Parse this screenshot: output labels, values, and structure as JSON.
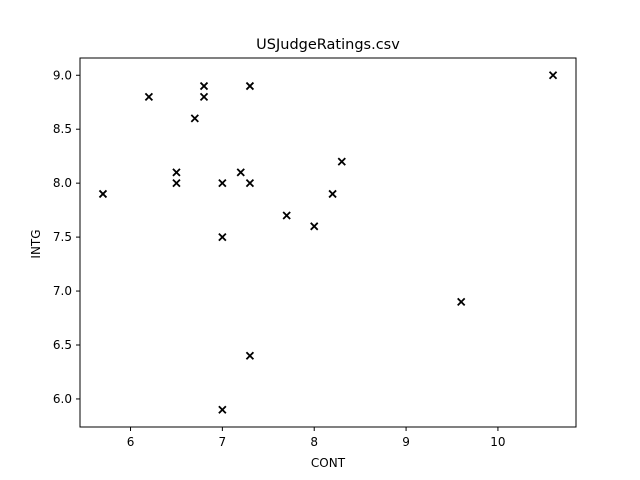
{
  "chart_data": {
    "type": "scatter",
    "title": "USJudgeRatings.csv",
    "xlabel": "CONT",
    "ylabel": "INTG",
    "xlim": [
      5.45,
      10.85
    ],
    "ylim": [
      5.74,
      9.16
    ],
    "xticks": [
      6,
      7,
      8,
      9,
      10
    ],
    "yticks": [
      6.0,
      6.5,
      7.0,
      7.5,
      8.0,
      8.5,
      9.0
    ],
    "grid": false,
    "marker": "x",
    "marker_color": "#000000",
    "series": [
      {
        "points": [
          {
            "x": 5.7,
            "y": 7.9
          },
          {
            "x": 6.2,
            "y": 8.8
          },
          {
            "x": 6.5,
            "y": 8.1
          },
          {
            "x": 6.5,
            "y": 8.0
          },
          {
            "x": 6.7,
            "y": 8.6
          },
          {
            "x": 6.8,
            "y": 8.9
          },
          {
            "x": 6.8,
            "y": 8.8
          },
          {
            "x": 7.0,
            "y": 8.0
          },
          {
            "x": 7.0,
            "y": 7.5
          },
          {
            "x": 7.0,
            "y": 5.9
          },
          {
            "x": 7.2,
            "y": 8.1
          },
          {
            "x": 7.3,
            "y": 8.9
          },
          {
            "x": 7.3,
            "y": 8.0
          },
          {
            "x": 7.3,
            "y": 6.4
          },
          {
            "x": 7.7,
            "y": 7.7
          },
          {
            "x": 8.0,
            "y": 7.6
          },
          {
            "x": 8.2,
            "y": 7.9
          },
          {
            "x": 8.3,
            "y": 8.2
          },
          {
            "x": 9.6,
            "y": 6.9
          },
          {
            "x": 10.6,
            "y": 9.0
          }
        ]
      }
    ]
  }
}
